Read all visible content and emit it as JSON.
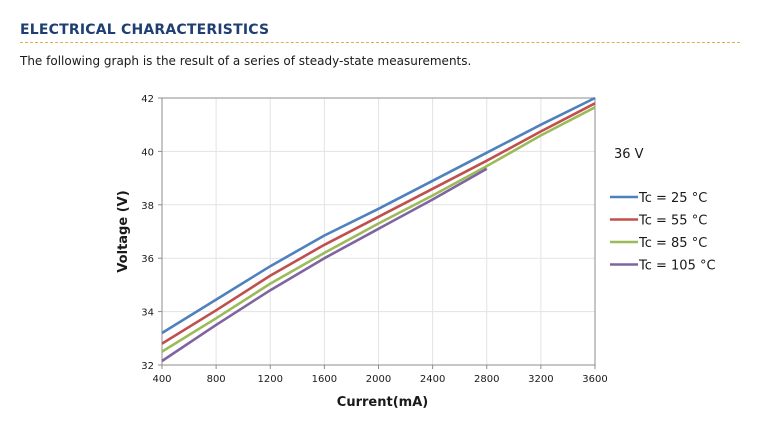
{
  "header": {
    "title": "ELECTRICAL CHARACTERISTICS",
    "intro": "The following graph is the result of a series of steady-state measurements."
  },
  "chart_data": {
    "type": "line",
    "xlabel": "Current(mA)",
    "ylabel": "Voltage (V)",
    "xlim": [
      400,
      3600
    ],
    "ylim": [
      32,
      42
    ],
    "x_ticks": [
      400,
      800,
      1200,
      1600,
      2000,
      2400,
      2800,
      3200,
      3600
    ],
    "y_ticks": [
      32,
      34,
      36,
      38,
      40,
      42
    ],
    "grid": true,
    "legend_position": "right",
    "annotation": "36 V",
    "series": [
      {
        "name": "Tc = 25 °C",
        "color": "#4f81bd",
        "points": [
          [
            400,
            33.2
          ],
          [
            800,
            34.45
          ],
          [
            1200,
            35.7
          ],
          [
            1600,
            36.85
          ],
          [
            2000,
            37.85
          ],
          [
            2400,
            38.9
          ],
          [
            2800,
            39.95
          ],
          [
            3200,
            41.0
          ],
          [
            3600,
            42.0
          ]
        ]
      },
      {
        "name": "Tc = 55 °C",
        "color": "#c0504d",
        "points": [
          [
            400,
            32.8
          ],
          [
            800,
            34.05
          ],
          [
            1200,
            35.35
          ],
          [
            1600,
            36.5
          ],
          [
            2000,
            37.55
          ],
          [
            2400,
            38.6
          ],
          [
            2800,
            39.65
          ],
          [
            3200,
            40.75
          ],
          [
            3600,
            41.8
          ]
        ]
      },
      {
        "name": "Tc = 85 °C",
        "color": "#9bbb59",
        "points": [
          [
            400,
            32.5
          ],
          [
            800,
            33.75
          ],
          [
            1200,
            35.05
          ],
          [
            1600,
            36.2
          ],
          [
            2000,
            37.3
          ],
          [
            2400,
            38.35
          ],
          [
            2800,
            39.45
          ],
          [
            3200,
            40.6
          ],
          [
            3600,
            41.65
          ]
        ]
      },
      {
        "name": "Tc = 105 °C",
        "color": "#8064a2",
        "points": [
          [
            400,
            32.15
          ],
          [
            800,
            33.5
          ],
          [
            1200,
            34.8
          ],
          [
            1600,
            36.0
          ],
          [
            2000,
            37.1
          ],
          [
            2400,
            38.2
          ],
          [
            2800,
            39.35
          ]
        ]
      }
    ]
  }
}
